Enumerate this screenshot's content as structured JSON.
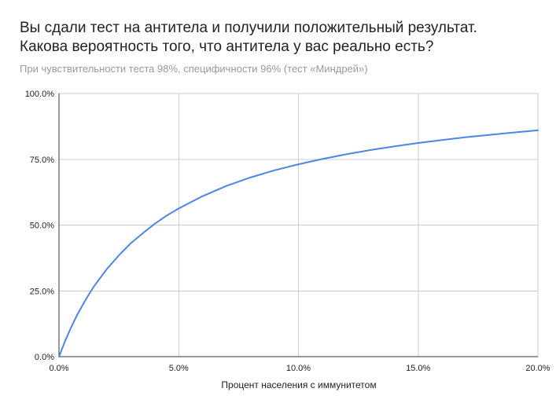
{
  "chart_data": {
    "type": "line",
    "title_lines": [
      "Вы сдали тест на антитела и получили положительный результат.",
      "Какова вероятность того, что антитела у вас реально есть?"
    ],
    "subtitle": "При чувствительности теста 98%, специфичности 96% (тест «Миндрей»)",
    "xlabel": "Процент населения с иммунитетом",
    "ylabel": "",
    "xlim": [
      0,
      0.2
    ],
    "ylim": [
      0,
      1.0
    ],
    "x_ticks": [
      "0.0%",
      "5.0%",
      "10.0%",
      "15.0%",
      "20.0%"
    ],
    "y_ticks": [
      "0.0%",
      "25.0%",
      "50.0%",
      "75.0%",
      "100.0%"
    ],
    "grid": true,
    "legend": "none",
    "series": [
      {
        "color": "#4a86e8",
        "x": [
          0,
          0.0025,
          0.005,
          0.0075,
          0.01,
          0.0125,
          0.015,
          0.02,
          0.025,
          0.03,
          0.035,
          0.04,
          0.045,
          0.05,
          0.06,
          0.07,
          0.08,
          0.09,
          0.1,
          0.11,
          0.12,
          0.13,
          0.14,
          0.15,
          0.16,
          0.17,
          0.18,
          0.19,
          0.2
        ],
        "y": [
          0,
          0.058,
          0.11,
          0.157,
          0.198,
          0.237,
          0.272,
          0.333,
          0.385,
          0.431,
          0.469,
          0.505,
          0.536,
          0.563,
          0.61,
          0.649,
          0.681,
          0.708,
          0.731,
          0.751,
          0.769,
          0.785,
          0.799,
          0.812,
          0.823,
          0.834,
          0.843,
          0.852,
          0.86
        ]
      }
    ]
  }
}
